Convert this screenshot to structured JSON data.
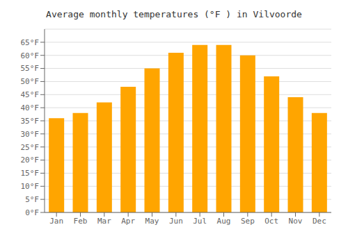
{
  "chart_data": {
    "type": "bar",
    "title": "Average monthly temperatures (°F ) in Vilvoorde",
    "categories": [
      "Jan",
      "Feb",
      "Mar",
      "Apr",
      "May",
      "Jun",
      "Jul",
      "Aug",
      "Sep",
      "Oct",
      "Nov",
      "Dec"
    ],
    "values": [
      36,
      38,
      42,
      48,
      55,
      61,
      64,
      64,
      60,
      52,
      44,
      38
    ],
    "color": "#FFA500",
    "ylim": [
      0,
      70
    ],
    "yticks": [
      {
        "value": 0,
        "label": "0°F"
      },
      {
        "value": 5,
        "label": "5°F"
      },
      {
        "value": 10,
        "label": "10°F"
      },
      {
        "value": 15,
        "label": "15°F"
      },
      {
        "value": 20,
        "label": "20°F"
      },
      {
        "value": 25,
        "label": "25°F"
      },
      {
        "value": 30,
        "label": "30°F"
      },
      {
        "value": 35,
        "label": "35°F"
      },
      {
        "value": 40,
        "label": "40°F"
      },
      {
        "value": 45,
        "label": "45°F"
      },
      {
        "value": 50,
        "label": "50°F"
      },
      {
        "value": 55,
        "label": "55°F"
      },
      {
        "value": 60,
        "label": "60°F"
      },
      {
        "value": 65,
        "label": "65°F"
      }
    ],
    "grid": true
  }
}
